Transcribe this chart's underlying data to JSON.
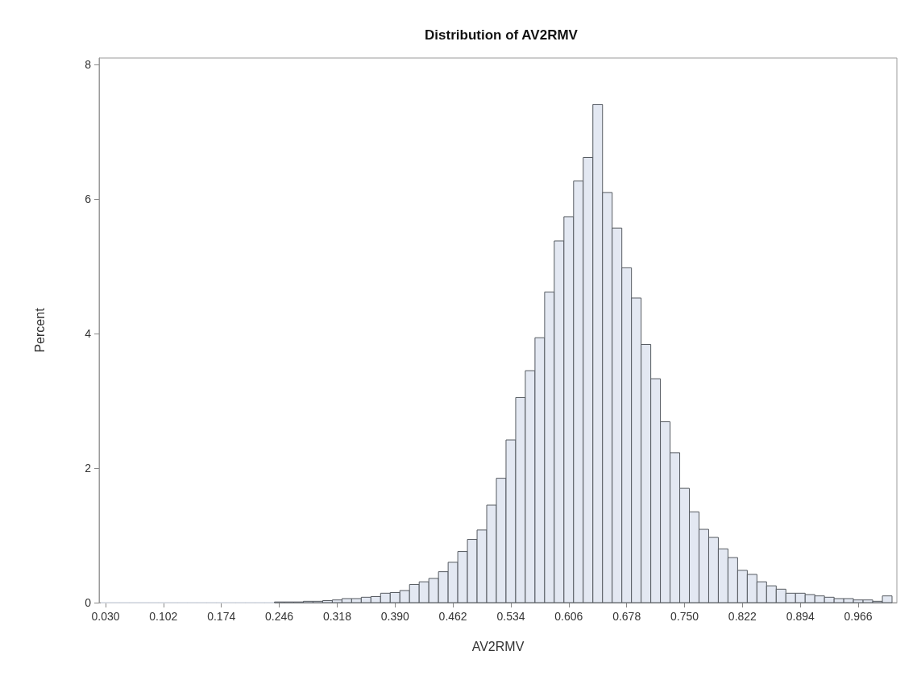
{
  "chart_data": {
    "type": "histogram",
    "title": "Distribution of AV2RMV",
    "xlabel": "AV2RMV",
    "ylabel": "Percent",
    "color": "#e3e8f2",
    "bins": [
      0.024,
      0.036,
      0.048,
      0.06,
      0.072,
      0.084,
      0.096,
      0.108,
      0.12,
      0.132,
      0.144,
      0.156,
      0.168,
      0.18,
      0.192,
      0.204,
      0.216,
      0.228,
      0.24,
      0.252,
      0.264,
      0.276,
      0.288,
      0.3,
      0.312,
      0.324,
      0.336,
      0.348,
      0.36,
      0.372,
      0.384,
      0.396,
      0.408,
      0.42,
      0.432,
      0.444,
      0.456,
      0.468,
      0.48,
      0.492,
      0.504,
      0.516,
      0.528,
      0.54,
      0.552,
      0.564,
      0.576,
      0.588,
      0.6,
      0.612,
      0.624,
      0.636,
      0.648,
      0.66,
      0.672,
      0.684,
      0.696,
      0.708,
      0.72,
      0.732,
      0.744,
      0.756,
      0.768,
      0.78,
      0.792,
      0.804,
      0.816,
      0.828,
      0.84,
      0.852,
      0.864,
      0.876,
      0.888,
      0.9,
      0.912,
      0.924,
      0.936,
      0.948,
      0.96,
      0.972,
      0.984,
      0.996,
      1.008
    ],
    "values": [
      0,
      0,
      0,
      0,
      0,
      0,
      0,
      0,
      0,
      0,
      0,
      0,
      0,
      0,
      0,
      0,
      0,
      0,
      0.01,
      0.01,
      0.01,
      0.02,
      0.02,
      0.03,
      0.04,
      0.06,
      0.06,
      0.08,
      0.09,
      0.14,
      0.15,
      0.18,
      0.27,
      0.31,
      0.36,
      0.46,
      0.6,
      0.76,
      0.94,
      1.08,
      1.45,
      1.85,
      2.42,
      3.05,
      3.45,
      3.94,
      4.62,
      5.38,
      5.74,
      6.27,
      6.62,
      7.41,
      6.1,
      5.57,
      4.98,
      4.53,
      3.84,
      3.33,
      2.69,
      2.23,
      1.7,
      1.35,
      1.09,
      0.97,
      0.8,
      0.67,
      0.48,
      0.42,
      0.31,
      0.25,
      0.2,
      0.14,
      0.14,
      0.12,
      0.1,
      0.08,
      0.06,
      0.06,
      0.04,
      0.04,
      0.02,
      0.1
    ],
    "xlim": [
      0.022,
      1.014
    ],
    "xticks": [
      {
        "value": 0.03,
        "label": "0.030"
      },
      0.102,
      0.174,
      0.246,
      0.318,
      {
        "value": 0.39,
        "label": "0.390"
      },
      0.462,
      0.534,
      0.606,
      0.678,
      {
        "value": 0.75,
        "label": "0.750"
      },
      0.822,
      0.894,
      0.966
    ],
    "ylim": [
      0,
      8.1
    ],
    "yticks": [
      0,
      2,
      4,
      6,
      8
    ],
    "grid": false
  }
}
